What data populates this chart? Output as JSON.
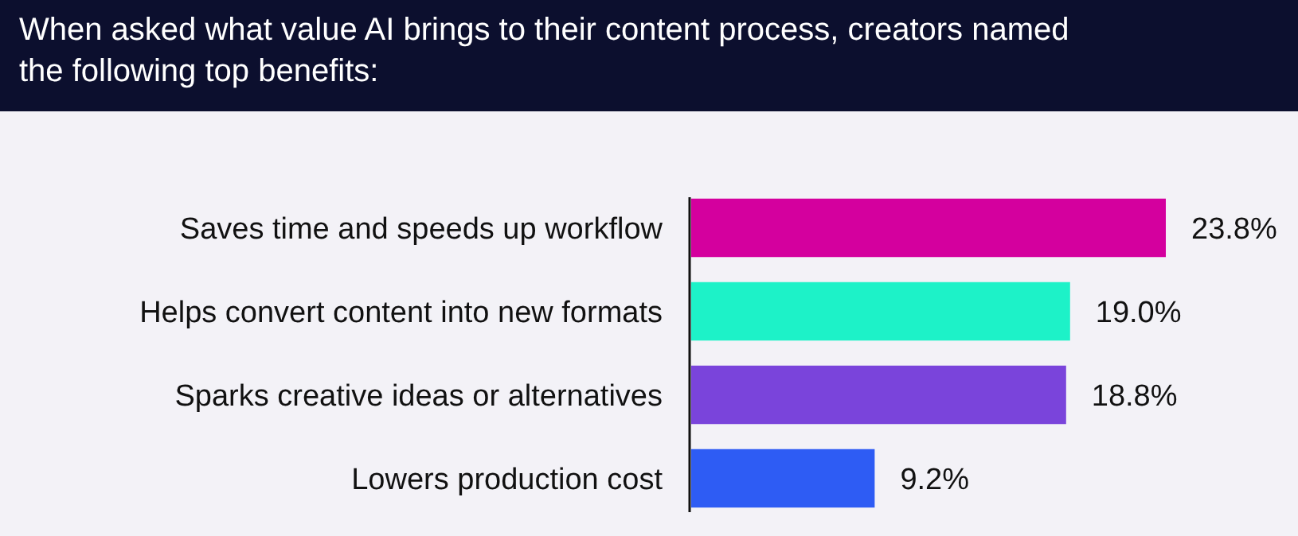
{
  "chart_data": {
    "type": "bar",
    "orientation": "horizontal",
    "title": "When asked what value AI brings to their content process, creators named the following top benefits:",
    "categories": [
      "Saves time and speeds up workflow",
      "Helps convert content into new formats",
      "Sparks creative ideas or alternatives",
      "Lowers production cost"
    ],
    "values": [
      23.8,
      19.0,
      18.8,
      9.2
    ],
    "colors": [
      "#d4009e",
      "#1df2c8",
      "#7a44db",
      "#2e5cf4"
    ],
    "value_labels": [
      "23.8%",
      "19.0%",
      "18.8%",
      "9.2%"
    ]
  }
}
